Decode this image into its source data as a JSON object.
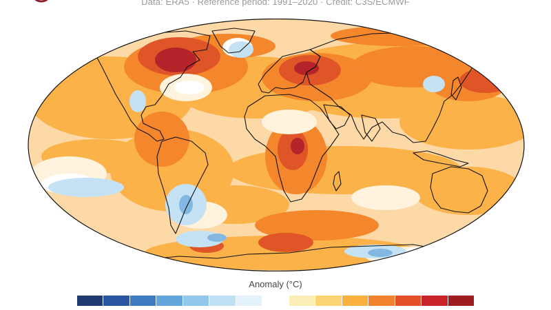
{
  "caption": "Data: ERA5 · Reference period: 1991–2020 · Credit: C3S/ECMWF",
  "legend": {
    "title": "Anomaly (°C)",
    "swatches": [
      "#1f3a6e",
      "#2a55a0",
      "#3d7bc2",
      "#63a6dc",
      "#92c8ec",
      "#bfe1f4",
      "#e3f2fa",
      "#ffffff",
      "#fbeeb6",
      "#fcd474",
      "#fbb040",
      "#f3822e",
      "#e3502a",
      "#c8222a",
      "#9e1b1f"
    ]
  },
  "colors": {
    "base": "#fdd9a8",
    "warm": "#fbb248",
    "hot": "#f4862c",
    "veryhot": "#e05528",
    "extreme": "#b5242a",
    "pale": "#fff3de",
    "white": "#ffffff",
    "cool": "#c4e2f4",
    "cold": "#82b8e2",
    "land_line": "#111111",
    "logo": "#8e1f2c"
  }
}
